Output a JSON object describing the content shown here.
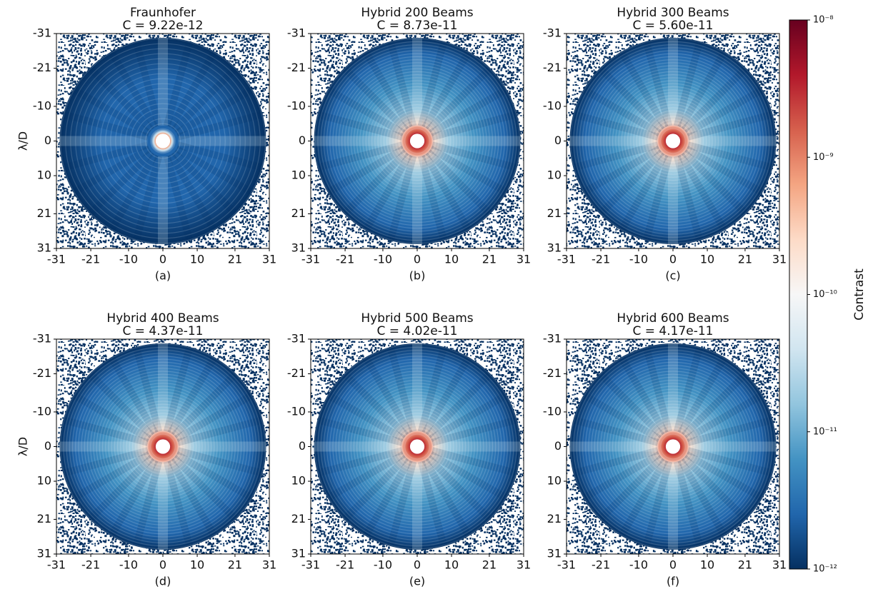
{
  "chart_data": [
    {
      "type": "heatmap",
      "title": "Fraunhofer",
      "subtitle": "C = 9.22e-12",
      "caption": "(a)",
      "ylabel": "λ/D",
      "xlim": [
        -31,
        31
      ],
      "ylim": [
        -31,
        31
      ],
      "xticks": [
        -31,
        -21,
        -10,
        0,
        10,
        21,
        31
      ],
      "yticks": [
        -31,
        -21,
        -10,
        0,
        10,
        21,
        31
      ]
    },
    {
      "type": "heatmap",
      "title": "Hybrid 200 Beams",
      "subtitle": "C = 8.73e-11",
      "caption": "(b)",
      "xlim": [
        -31,
        31
      ],
      "ylim": [
        -31,
        31
      ],
      "xticks": [
        -31,
        -21,
        -10,
        0,
        10,
        21,
        31
      ],
      "yticks": [
        -31,
        -21,
        -10,
        0,
        10,
        21,
        31
      ]
    },
    {
      "type": "heatmap",
      "title": "Hybrid 300 Beams",
      "subtitle": "C = 5.60e-11",
      "caption": "(c)",
      "xlim": [
        -31,
        31
      ],
      "ylim": [
        -31,
        31
      ],
      "xticks": [
        -31,
        -21,
        -10,
        0,
        10,
        21,
        31
      ],
      "yticks": [
        -31,
        -21,
        -10,
        0,
        10,
        21,
        31
      ]
    },
    {
      "type": "heatmap",
      "title": "Hybrid 400 Beams",
      "subtitle": "C = 4.37e-11",
      "caption": "(d)",
      "ylabel": "λ/D",
      "xlim": [
        -31,
        31
      ],
      "ylim": [
        -31,
        31
      ],
      "xticks": [
        -31,
        -21,
        -10,
        0,
        10,
        21,
        31
      ],
      "yticks": [
        -31,
        -21,
        -10,
        0,
        10,
        21,
        31
      ]
    },
    {
      "type": "heatmap",
      "title": "Hybrid 500 Beams",
      "subtitle": "C = 4.02e-11",
      "caption": "(e)",
      "xlim": [
        -31,
        31
      ],
      "ylim": [
        -31,
        31
      ],
      "xticks": [
        -31,
        -21,
        -10,
        0,
        10,
        21,
        31
      ],
      "yticks": [
        -31,
        -21,
        -10,
        0,
        10,
        21,
        31
      ]
    },
    {
      "type": "heatmap",
      "title": "Hybrid 600 Beams",
      "subtitle": "C = 4.17e-11",
      "caption": "(f)",
      "xlim": [
        -31,
        31
      ],
      "ylim": [
        -31,
        31
      ],
      "xticks": [
        -31,
        -21,
        -10,
        0,
        10,
        21,
        31
      ],
      "yticks": [
        -31,
        -21,
        -10,
        0,
        10,
        21,
        31
      ]
    }
  ],
  "colorbar": {
    "label": "Contrast",
    "scale": "log",
    "lim": [
      1e-12,
      1e-08
    ],
    "ticks": [
      {
        "value": 1e-08,
        "label": "10⁻⁸"
      },
      {
        "value": 1e-09,
        "label": "10⁻⁹"
      },
      {
        "value": 1e-10,
        "label": "10⁻¹⁰"
      },
      {
        "value": 1e-11,
        "label": "10⁻¹¹"
      },
      {
        "value": 1e-12,
        "label": "10⁻¹²"
      }
    ],
    "colormap": [
      "#053061",
      "#2166ac",
      "#4393c3",
      "#92c5de",
      "#d1e5f0",
      "#f7f7f7",
      "#fddbc7",
      "#f4a582",
      "#d6604d",
      "#b2182b",
      "#67001f"
    ]
  }
}
